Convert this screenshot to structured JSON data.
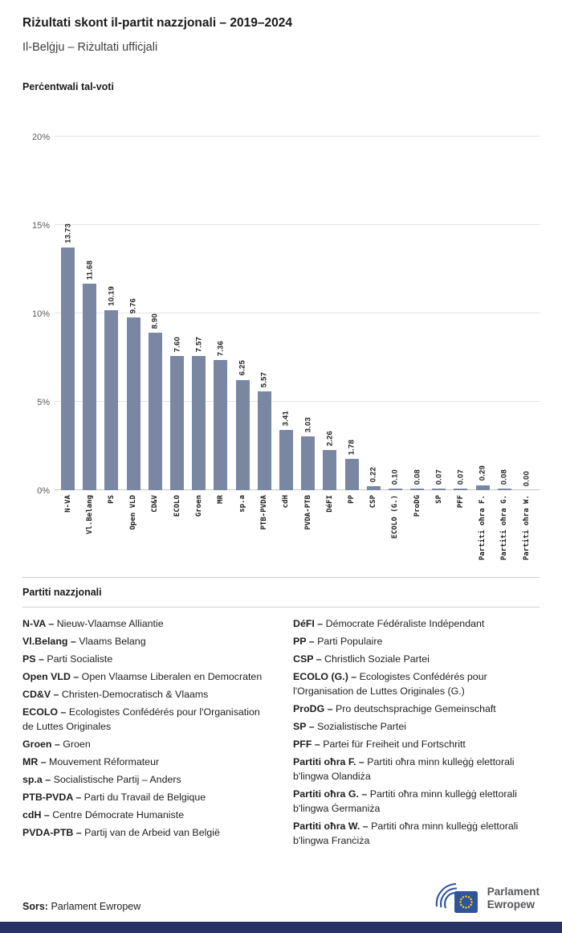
{
  "header": {
    "title": "Riżultati skont il-partit nazzjonali – 2019–2024",
    "subtitle": "Il-Belġju – Riżultati uffiċjali"
  },
  "chart_data": {
    "type": "bar",
    "title": "Perċentwali tal-voti",
    "categories": [
      "N-VA",
      "Vl.Belang",
      "PS",
      "Open VLD",
      "CD&V",
      "ECOLO",
      "Groen",
      "MR",
      "sp.a",
      "PTB-PVDA",
      "cdH",
      "PVDA-PTB",
      "DéFI",
      "PP",
      "CSP",
      "ECOLO (G.)",
      "ProDG",
      "SP",
      "PFF",
      "Partiti oħra F.",
      "Partiti oħra G.",
      "Partiti oħra W."
    ],
    "values": [
      13.73,
      11.68,
      10.19,
      9.76,
      8.9,
      7.6,
      7.57,
      7.36,
      6.25,
      5.57,
      3.41,
      3.03,
      2.26,
      1.78,
      0.22,
      0.1,
      0.08,
      0.07,
      0.07,
      0.29,
      0.08,
      0.0
    ],
    "value_labels": [
      "13.73",
      "11.68",
      "10.19",
      "9.76",
      "8.90",
      "7.60",
      "7.57",
      "7.36",
      "6.25",
      "5.57",
      "3.41",
      "3.03",
      "2.26",
      "1.78",
      "0.22",
      "0.10",
      "0.08",
      "0.07",
      "0.07",
      "0.29",
      "0.08",
      "0.00"
    ],
    "xlabel": "",
    "ylabel": "Perċentwali tal-voti",
    "ylim": [
      0,
      20
    ],
    "yticks": [
      {
        "value": 0,
        "label": "0%"
      },
      {
        "value": 5,
        "label": "5%"
      },
      {
        "value": 10,
        "label": "10%"
      },
      {
        "value": 15,
        "label": "15%"
      },
      {
        "value": 20,
        "label": "20%"
      }
    ],
    "grid": true,
    "legend_position": "none",
    "bar_color": "#7A87A3"
  },
  "legend": {
    "title": "Partiti nazzjonali",
    "left": [
      {
        "abbr": "N-VA",
        "name": "Nieuw-Vlaamse Alliantie"
      },
      {
        "abbr": "Vl.Belang",
        "name": "Vlaams Belang"
      },
      {
        "abbr": "PS",
        "name": "Parti Socialiste"
      },
      {
        "abbr": "Open VLD",
        "name": "Open Vlaamse Liberalen en Democraten"
      },
      {
        "abbr": "CD&V",
        "name": "Christen-Democratisch & Vlaams"
      },
      {
        "abbr": "ECOLO",
        "name": "Ecologistes Confédérés pour l'Organisation de Luttes Originales"
      },
      {
        "abbr": "Groen",
        "name": "Groen"
      },
      {
        "abbr": "MR",
        "name": "Mouvement Réformateur"
      },
      {
        "abbr": "sp.a",
        "name": "Socialistische Partij – Anders"
      },
      {
        "abbr": "PTB-PVDA",
        "name": "Parti du Travail de Belgique"
      },
      {
        "abbr": "cdH",
        "name": "Centre Démocrate Humaniste"
      },
      {
        "abbr": "PVDA-PTB",
        "name": "Partij van de Arbeid van België"
      }
    ],
    "right": [
      {
        "abbr": "DéFI",
        "name": "Démocrate Fédéraliste Indépendant"
      },
      {
        "abbr": "PP",
        "name": "Parti Populaire"
      },
      {
        "abbr": "CSP",
        "name": "Christlich Soziale Partei"
      },
      {
        "abbr": "ECOLO (G.)",
        "name": "Ecologistes Confédérés pour l'Organisation de Luttes Originales (G.)"
      },
      {
        "abbr": "ProDG",
        "name": "Pro deutschsprachige Gemeinschaft"
      },
      {
        "abbr": "SP",
        "name": "Sozialistische Partei"
      },
      {
        "abbr": "PFF",
        "name": "Partei für Freiheit und Fortschritt"
      },
      {
        "abbr": "Partiti oħra F.",
        "name": "Partiti oħra minn kulleġġ elettorali b'lingwa Olandiża"
      },
      {
        "abbr": "Partiti oħra G.",
        "name": "Partiti oħra minn kulleġġ elettorali b'lingwa Ġermaniża"
      },
      {
        "abbr": "Partiti oħra W.",
        "name": "Partiti oħra minn kulleġġ elettorali b'lingwa Franċiża"
      }
    ]
  },
  "footer": {
    "source_label": "Sors:",
    "source_value": "Parlament Ewropew",
    "logo_line1": "Parlament",
    "logo_line2": "Ewropew",
    "colors": {
      "logo_blue": "#2f549b",
      "star_yellow": "#ffd617",
      "brand_bar_navy": "#293264"
    }
  }
}
